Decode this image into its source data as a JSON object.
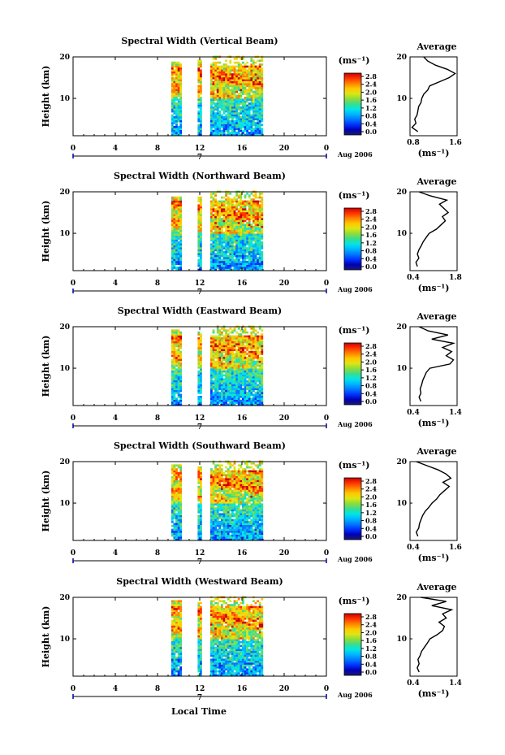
{
  "chart_data": [
    {
      "type": "heatmap",
      "title": "Spectral Width (Vertical Beam)",
      "ylabel": "Height (km)",
      "x_ticks": [
        "0",
        "4",
        "8",
        "12",
        "16",
        "20",
        "0"
      ],
      "y_ticks": [
        "20",
        "10"
      ],
      "xlim": [
        0,
        24
      ],
      "ylim": [
        1,
        20
      ],
      "data_time_spans": [
        [
          9.3,
          10.2
        ],
        [
          11.8,
          12.1
        ],
        [
          13.0,
          18.0
        ]
      ],
      "date_marker": "7",
      "date_label": "Aug 2006",
      "colorbar_unit": "(ms⁻¹)",
      "colorbar_ticks": [
        "2.8",
        "2.4",
        "2.0",
        "1.6",
        "1.2",
        "0.8",
        "0.4",
        "0.0"
      ],
      "average_profile": {
        "title": "Average",
        "xlabel": "(ms⁻¹)",
        "x_ticks": [
          "0.8",
          "1.6"
        ],
        "xlim": [
          0.6,
          1.8
        ],
        "heights": [
          2,
          3,
          4,
          5,
          6,
          7,
          8,
          9,
          10,
          11,
          12,
          13,
          14,
          15,
          16,
          17,
          18,
          19,
          20
        ],
        "values": [
          0.8,
          0.65,
          0.75,
          0.72,
          0.78,
          0.8,
          0.82,
          0.88,
          0.9,
          0.95,
          1.05,
          1.1,
          1.35,
          1.6,
          1.75,
          1.55,
          1.25,
          1.05,
          0.95
        ]
      }
    },
    {
      "type": "heatmap",
      "title": "Spectral Width (Northward Beam)",
      "ylabel": "Height (km)",
      "x_ticks": [
        "0",
        "4",
        "8",
        "12",
        "16",
        "20",
        "0"
      ],
      "y_ticks": [
        "20",
        "10"
      ],
      "xlim": [
        0,
        24
      ],
      "ylim": [
        1,
        20
      ],
      "data_time_spans": [
        [
          9.3,
          10.2
        ],
        [
          11.8,
          12.1
        ],
        [
          13.0,
          18.0
        ]
      ],
      "date_marker": "7",
      "date_label": "Aug 2006",
      "colorbar_unit": "(ms⁻¹)",
      "colorbar_ticks": [
        "2.8",
        "2.4",
        "2.0",
        "1.6",
        "1.2",
        "0.8",
        "0.4",
        "0.0"
      ],
      "average_profile": {
        "title": "Average",
        "xlabel": "(ms⁻¹)",
        "x_ticks": [
          "0.4",
          "1.8"
        ],
        "xlim": [
          0.3,
          1.9
        ],
        "heights": [
          2,
          3,
          4,
          5,
          6,
          7,
          8,
          9,
          10,
          11,
          12,
          13,
          14,
          15,
          16,
          17,
          18,
          19,
          20
        ],
        "values": [
          0.55,
          0.5,
          0.6,
          0.55,
          0.6,
          0.68,
          0.75,
          0.85,
          0.95,
          1.2,
          1.35,
          1.5,
          1.4,
          1.6,
          1.45,
          1.3,
          1.55,
          1.0,
          0.6
        ]
      }
    },
    {
      "type": "heatmap",
      "title": "Spectral Width (Eastward Beam)",
      "ylabel": "Height (km)",
      "x_ticks": [
        "0",
        "4",
        "8",
        "12",
        "16",
        "20",
        "0"
      ],
      "y_ticks": [
        "20",
        "10"
      ],
      "xlim": [
        0,
        24
      ],
      "ylim": [
        1,
        20
      ],
      "data_time_spans": [
        [
          9.3,
          10.2
        ],
        [
          11.8,
          12.1
        ],
        [
          13.0,
          18.0
        ]
      ],
      "date_marker": "7",
      "date_label": "Aug 2006",
      "colorbar_unit": "(ms⁻¹)",
      "colorbar_ticks": [
        "2.8",
        "2.4",
        "2.0",
        "1.6",
        "1.2",
        "0.8",
        "0.4",
        "0.0"
      ],
      "average_profile": {
        "title": "Average",
        "xlabel": "(ms⁻¹)",
        "x_ticks": [
          "0.4",
          "1.4"
        ],
        "xlim": [
          0.3,
          1.6
        ],
        "heights": [
          2,
          3,
          4,
          5,
          6,
          7,
          8,
          9,
          10,
          11,
          12,
          13,
          14,
          15,
          16,
          17,
          18,
          19,
          20
        ],
        "values": [
          0.6,
          0.55,
          0.6,
          0.58,
          0.62,
          0.65,
          0.7,
          0.75,
          0.85,
          1.4,
          1.5,
          1.3,
          1.45,
          1.2,
          1.5,
          0.9,
          1.35,
          0.8,
          0.55
        ]
      }
    },
    {
      "type": "heatmap",
      "title": "Spectral Width (Southward Beam)",
      "ylabel": "Height (km)",
      "x_ticks": [
        "0",
        "4",
        "8",
        "12",
        "16",
        "20",
        "0"
      ],
      "y_ticks": [
        "20",
        "10"
      ],
      "xlim": [
        0,
        24
      ],
      "ylim": [
        1,
        20
      ],
      "data_time_spans": [
        [
          9.3,
          10.2
        ],
        [
          11.8,
          12.1
        ],
        [
          13.0,
          18.0
        ]
      ],
      "date_marker": "7",
      "date_label": "Aug 2006",
      "colorbar_unit": "(ms⁻¹)",
      "colorbar_ticks": [
        "2.8",
        "2.4",
        "2.0",
        "1.6",
        "1.2",
        "0.8",
        "0.4",
        "0.0"
      ],
      "average_profile": {
        "title": "Average",
        "xlabel": "(ms⁻¹)",
        "x_ticks": [
          "0.4",
          "1.6"
        ],
        "xlim": [
          0.3,
          1.8
        ],
        "heights": [
          2,
          3,
          4,
          5,
          6,
          7,
          8,
          9,
          10,
          11,
          12,
          13,
          14,
          15,
          16,
          17,
          18,
          19,
          20
        ],
        "values": [
          0.55,
          0.5,
          0.58,
          0.6,
          0.65,
          0.7,
          0.78,
          0.9,
          1.0,
          1.15,
          1.25,
          1.4,
          1.55,
          1.35,
          1.6,
          1.45,
          1.2,
          0.85,
          0.5
        ]
      }
    },
    {
      "type": "heatmap",
      "title": "Spectral Width (Westward Beam)",
      "ylabel": "Height (km)",
      "x_ticks": [
        "0",
        "4",
        "8",
        "12",
        "16",
        "20",
        "0"
      ],
      "y_ticks": [
        "20",
        "10"
      ],
      "xlim": [
        0,
        24
      ],
      "ylim": [
        1,
        20
      ],
      "data_time_spans": [
        [
          9.3,
          10.2
        ],
        [
          11.8,
          12.1
        ],
        [
          13.0,
          18.0
        ]
      ],
      "date_marker": "7",
      "date_label": "Aug 2006",
      "colorbar_unit": "(ms⁻¹)",
      "colorbar_ticks": [
        "2.8",
        "2.4",
        "2.0",
        "1.6",
        "1.2",
        "0.8",
        "0.4",
        "0.0"
      ],
      "average_profile": {
        "title": "Average",
        "xlabel": "(ms⁻¹)",
        "x_ticks": [
          "0.4",
          "1.4"
        ],
        "xlim": [
          0.3,
          1.6
        ],
        "heights": [
          2,
          3,
          4,
          5,
          6,
          7,
          8,
          9,
          10,
          11,
          12,
          13,
          14,
          15,
          16,
          17,
          18,
          19,
          20
        ],
        "values": [
          0.55,
          0.5,
          0.55,
          0.52,
          0.58,
          0.62,
          0.7,
          0.78,
          0.85,
          1.05,
          1.2,
          1.25,
          1.1,
          1.3,
          1.2,
          1.45,
          0.9,
          1.3,
          0.6
        ]
      }
    }
  ],
  "x_axis_label": "Local Time",
  "colormap": [
    "#1a1a6e",
    "#0000b4",
    "#0032ff",
    "#0078ff",
    "#00b4ff",
    "#00e6e6",
    "#3cdc8c",
    "#8cdc3c",
    "#dce614",
    "#ffc800",
    "#ff8200",
    "#ff3200",
    "#c80000"
  ]
}
